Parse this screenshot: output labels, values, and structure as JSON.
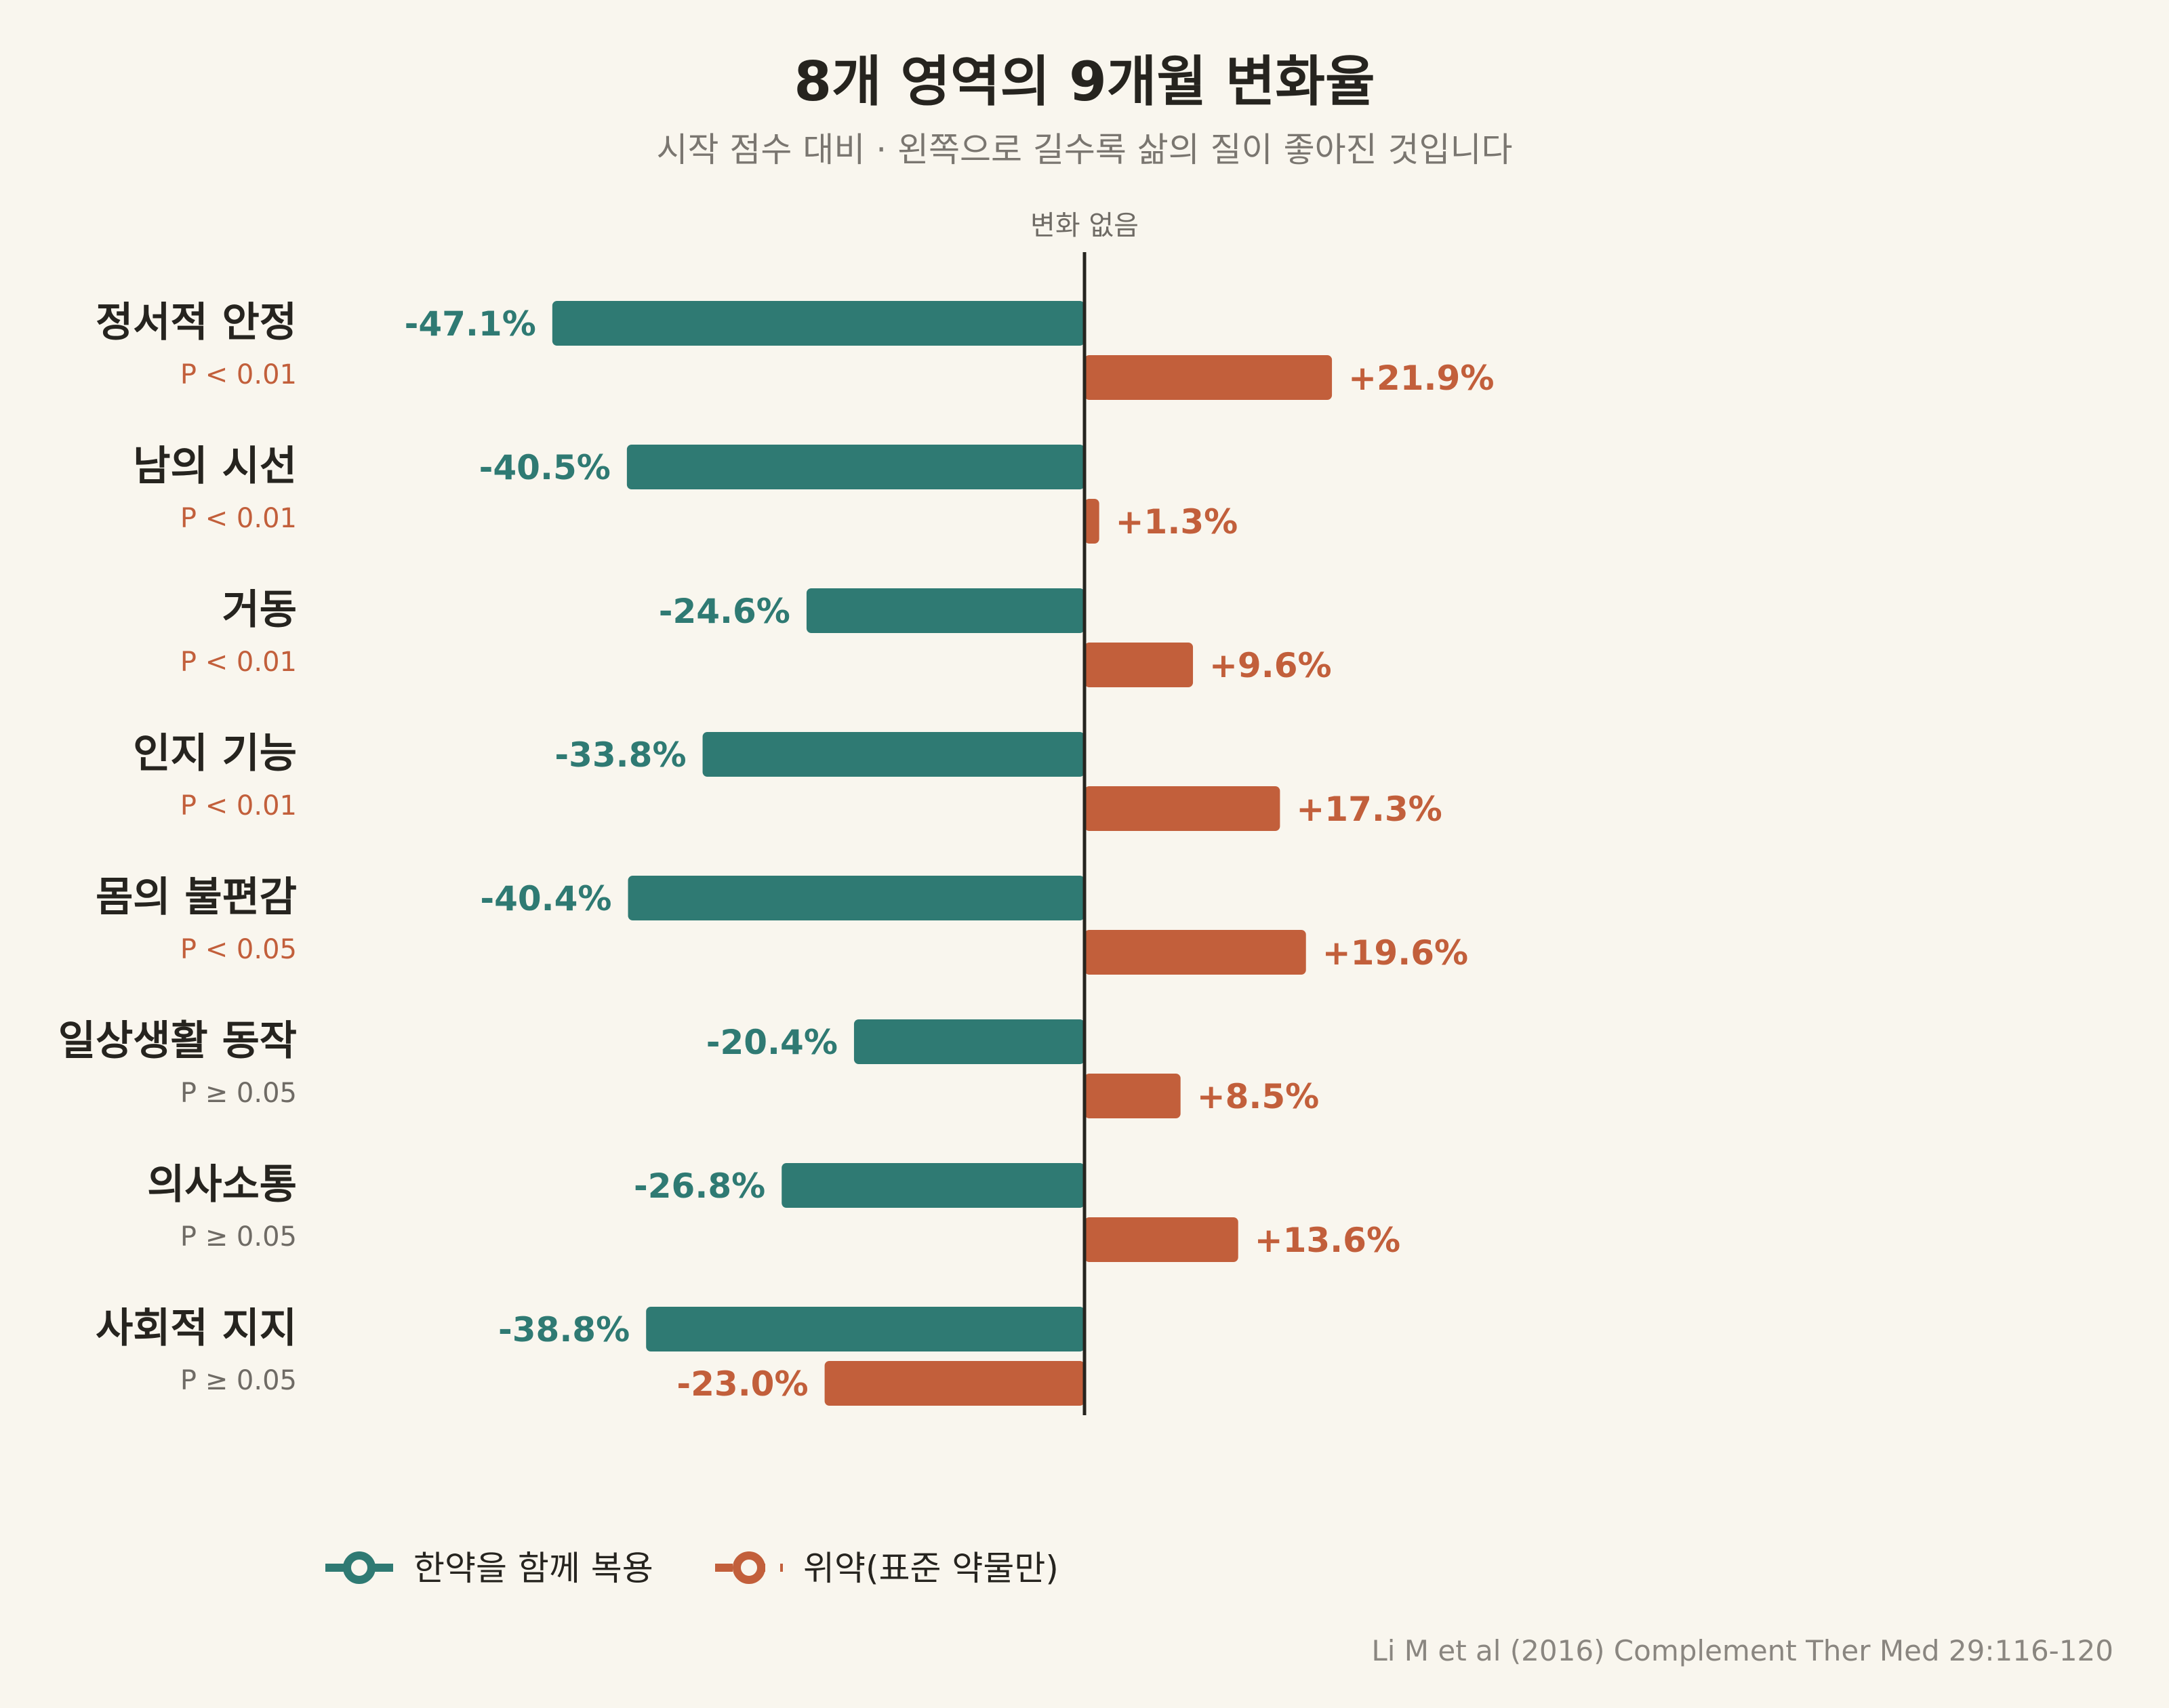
{
  "chart_data": {
    "type": "bar",
    "orientation": "horizontal",
    "title": "8개 영역의 9개월 변화율",
    "subtitle": "시작 점수 대비 · 왼쪽으로 길수록 삶의 질이 좋아진 것입니다",
    "zero_line_label": "변화 없음",
    "categories": [
      "정서적 안정",
      "남의 시선",
      "거동",
      "인지 기능",
      "몸의 불편감",
      "일상생활 동작",
      "의사소통",
      "사회적 지지"
    ],
    "p_values": [
      "P < 0.01",
      "P < 0.01",
      "P < 0.01",
      "P < 0.01",
      "P < 0.05",
      "P ≥ 0.05",
      "P ≥ 0.05",
      "P ≥ 0.05"
    ],
    "significant": [
      true,
      true,
      true,
      true,
      true,
      false,
      false,
      false
    ],
    "xlim": [
      -50,
      50
    ],
    "series": [
      {
        "name": "한약을 함께 복용",
        "color": "#2f7a73",
        "values": [
          -47.1,
          -40.5,
          -24.6,
          -33.8,
          -40.4,
          -20.4,
          -26.8,
          -38.8
        ],
        "labels": [
          "-47.1%",
          "-40.5%",
          "-24.6%",
          "-33.8%",
          "-40.4%",
          "-20.4%",
          "-26.8%",
          "-38.8%"
        ]
      },
      {
        "name": "위약(표준 약물만)",
        "color": "#c25f3b",
        "values": [
          21.9,
          1.3,
          9.6,
          17.3,
          19.6,
          8.5,
          13.6,
          -23.0
        ],
        "labels": [
          "+21.9%",
          "+1.3%",
          "+9.6%",
          "+17.3%",
          "+19.6%",
          "+8.5%",
          "+13.6%",
          "-23.0%"
        ]
      }
    ],
    "legend_position": "bottom-left",
    "grid": false,
    "source": "Li M et al (2016) Complement Ther Med 29:116-120",
    "colors": {
      "background": "#f9f6ee",
      "text": "#26241f",
      "muted": "#7a7670",
      "p_significant": "#c25f3b",
      "p_nonsignificant": "#6f6b65"
    }
  }
}
